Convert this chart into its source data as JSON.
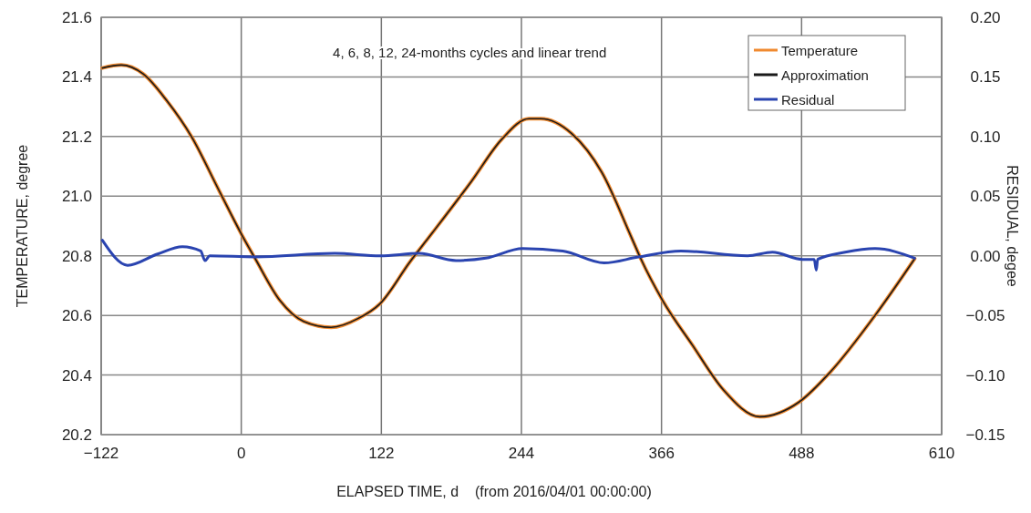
{
  "chart_data": {
    "type": "line",
    "xlabel": "ELAPSED TIME, d    (from 2016/04/01 00:00:00)",
    "ylabel": "TEMPERATURE, degree",
    "y2label": "RESIDUAL, degee",
    "annotations": [
      "4, 6, 8, 12, 24-months cycles and linear trend"
    ],
    "xlim": [
      -122,
      610
    ],
    "xticks": [
      {
        "value": -122,
        "label": "−122"
      },
      0,
      122,
      244,
      366,
      488,
      610
    ],
    "ylim": [
      20.2,
      21.6
    ],
    "yticks": [
      20.2,
      20.4,
      20.6,
      20.8,
      {
        "value": 21.0,
        "label": "21.0"
      },
      21.2,
      21.4,
      21.6
    ],
    "y2lim": [
      -0.15,
      0.2
    ],
    "y2ticks": [
      {
        "value": -0.15,
        "label": "−0.15"
      },
      {
        "value": -0.1,
        "label": "−0.10"
      },
      {
        "value": -0.05,
        "label": "−0.05"
      },
      {
        "value": 0,
        "label": "0.00"
      },
      {
        "value": 0.05,
        "label": "0.05"
      },
      {
        "value": 0.1,
        "label": "0.10"
      },
      {
        "value": 0.15,
        "label": "0.15"
      },
      {
        "value": 0.2,
        "label": "0.20"
      }
    ],
    "grid": true,
    "legend": "top right",
    "series": [
      {
        "name": "Temperature",
        "color": "#f08a30",
        "x": [
          -121,
          -104.5,
          -85.4,
          -64.8,
          -43.4,
          -19.5,
          1.9,
          12.2,
          33.7,
          54.3,
          78.2,
          102,
          121,
          147,
          161,
          200.5,
          226.7,
          250.5,
          260.8,
          287.8,
          314,
          340,
          348,
          367,
          393,
          420,
          451.5,
          486,
          513,
          552,
          586.5
        ],
        "values": [
          21.43,
          21.44,
          21.41,
          21.32,
          21.2,
          21.02,
          20.86,
          20.79,
          20.65,
          20.58,
          20.56,
          20.59,
          20.64,
          20.78,
          20.85,
          21.05,
          21.19,
          21.26,
          21.26,
          21.21,
          21.08,
          20.86,
          20.79,
          20.65,
          20.5,
          20.35,
          20.26,
          20.31,
          20.41,
          20.6,
          20.79
        ]
      },
      {
        "name": "Approximation",
        "color": "#1a1a1a",
        "x": [
          -121,
          -104.5,
          -85.4,
          -64.8,
          -43.4,
          -19.5,
          1.9,
          12.2,
          33.7,
          54.3,
          78.2,
          102,
          121,
          147,
          161,
          200.5,
          226.7,
          250.5,
          260.8,
          287.8,
          314,
          340,
          348,
          367,
          393,
          420,
          451.5,
          486,
          513,
          552,
          586.5
        ],
        "values": [
          21.43,
          21.44,
          21.41,
          21.32,
          21.2,
          21.02,
          20.86,
          20.79,
          20.65,
          20.58,
          20.56,
          20.59,
          20.64,
          20.78,
          20.85,
          21.05,
          21.19,
          21.26,
          21.26,
          21.21,
          21.08,
          20.86,
          20.79,
          20.65,
          20.5,
          20.35,
          20.26,
          20.31,
          20.41,
          20.6,
          20.79
        ]
      },
      {
        "name": "Residual",
        "color": "#2a44b0",
        "axis": "y2",
        "x": [
          -121,
          -99,
          -72.8,
          -51.3,
          -35.4,
          -31.5,
          -27.5,
          12.2,
          81.3,
          121,
          155,
          187,
          213,
          245,
          280,
          316,
          345.8,
          383,
          441,
          462.6,
          488.8,
          499,
          500.8,
          502,
          526,
          552,
          586.5
        ],
        "values": [
          0.013,
          -0.008,
          0.0015,
          0.0076,
          0.004,
          -0.004,
          0,
          -0.001,
          0.002,
          0,
          0.002,
          -0.004,
          -0.002,
          0.006,
          0.004,
          -0.006,
          -0.001,
          0.004,
          0,
          0.003,
          -0.003,
          -0.003,
          -0.012,
          -0.003,
          0.003,
          0.006,
          -0.002
        ]
      }
    ]
  }
}
